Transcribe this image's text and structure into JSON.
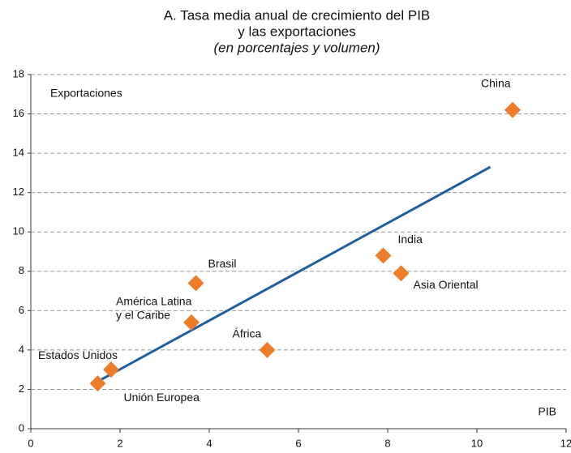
{
  "chart_data": {
    "type": "scatter",
    "title": [
      "A. Tasa media anual de crecimiento del PIB",
      "y las exportaciones"
    ],
    "subtitle": "(en porcentajes y volumen)",
    "x_label": "PIB",
    "y_label": "Exportaciones",
    "xlim": [
      0,
      12
    ],
    "ylim": [
      0,
      18
    ],
    "xticks": [
      0,
      2,
      4,
      6,
      8,
      10,
      12
    ],
    "yticks": [
      0,
      2,
      4,
      6,
      8,
      10,
      12,
      14,
      16,
      18
    ],
    "grid": true,
    "points": {
      "color": "#ee7d2b",
      "labels": [
        [
          "China"
        ],
        [
          "India"
        ],
        [
          "Asia Oriental"
        ],
        [
          "Brasil"
        ],
        [
          "América Latina",
          "y el Caribe"
        ],
        [
          "África"
        ],
        [
          "Estados Unidos"
        ],
        [
          "Unión Europea"
        ]
      ],
      "x": [
        10.8,
        7.9,
        8.3,
        3.7,
        3.6,
        5.3,
        1.8,
        1.5
      ],
      "y": [
        16.2,
        8.8,
        7.9,
        7.4,
        5.4,
        4.0,
        3.0,
        2.3
      ]
    },
    "trend": {
      "color": "#1f5fa0",
      "x": [
        1.5,
        10.3
      ],
      "y": [
        2.4,
        13.3
      ]
    }
  }
}
